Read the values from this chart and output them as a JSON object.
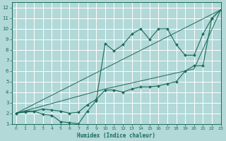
{
  "xlabel": "Humidex (Indice chaleur)",
  "xlim": [
    -0.5,
    23
  ],
  "ylim": [
    1,
    12.5
  ],
  "xticks": [
    0,
    1,
    2,
    3,
    4,
    5,
    6,
    7,
    8,
    9,
    10,
    11,
    12,
    13,
    14,
    15,
    16,
    17,
    18,
    19,
    20,
    21,
    22,
    23
  ],
  "yticks": [
    1,
    2,
    3,
    4,
    5,
    6,
    7,
    8,
    9,
    10,
    11,
    12
  ],
  "bg_color": "#b2d8d8",
  "grid_color": "#ffffff",
  "line_color": "#1a6b5a",
  "line1_x": [
    0,
    1,
    2,
    3,
    4,
    5,
    6,
    7,
    8,
    9,
    10,
    11,
    12,
    13,
    14,
    15,
    16,
    17,
    18,
    19,
    20,
    21,
    22,
    23
  ],
  "line1_y": [
    2,
    2.2,
    2.2,
    1.9,
    1.8,
    1.2,
    1.1,
    1.0,
    2.2,
    3.2,
    8.6,
    7.9,
    8.5,
    9.5,
    10.0,
    9.0,
    10.0,
    10.0,
    8.5,
    7.5,
    7.5,
    9.5,
    11.0,
    11.8
  ],
  "line2_x": [
    0,
    1,
    2,
    3,
    4,
    5,
    6,
    7,
    8,
    9,
    10,
    11,
    12,
    13,
    14,
    15,
    16,
    17,
    18,
    19,
    20,
    21,
    22,
    23
  ],
  "line2_y": [
    2,
    2.1,
    2.2,
    2.4,
    2.3,
    2.2,
    2.0,
    2.1,
    2.8,
    3.3,
    4.2,
    4.2,
    4.0,
    4.3,
    4.5,
    4.5,
    4.6,
    4.8,
    5.0,
    6.0,
    6.5,
    6.5,
    11.0,
    11.8
  ],
  "line3_x": [
    0,
    23
  ],
  "line3_y": [
    2,
    11.8
  ],
  "line4_x": [
    0,
    10,
    20,
    23
  ],
  "line4_y": [
    2,
    4.3,
    6.2,
    11.8
  ]
}
